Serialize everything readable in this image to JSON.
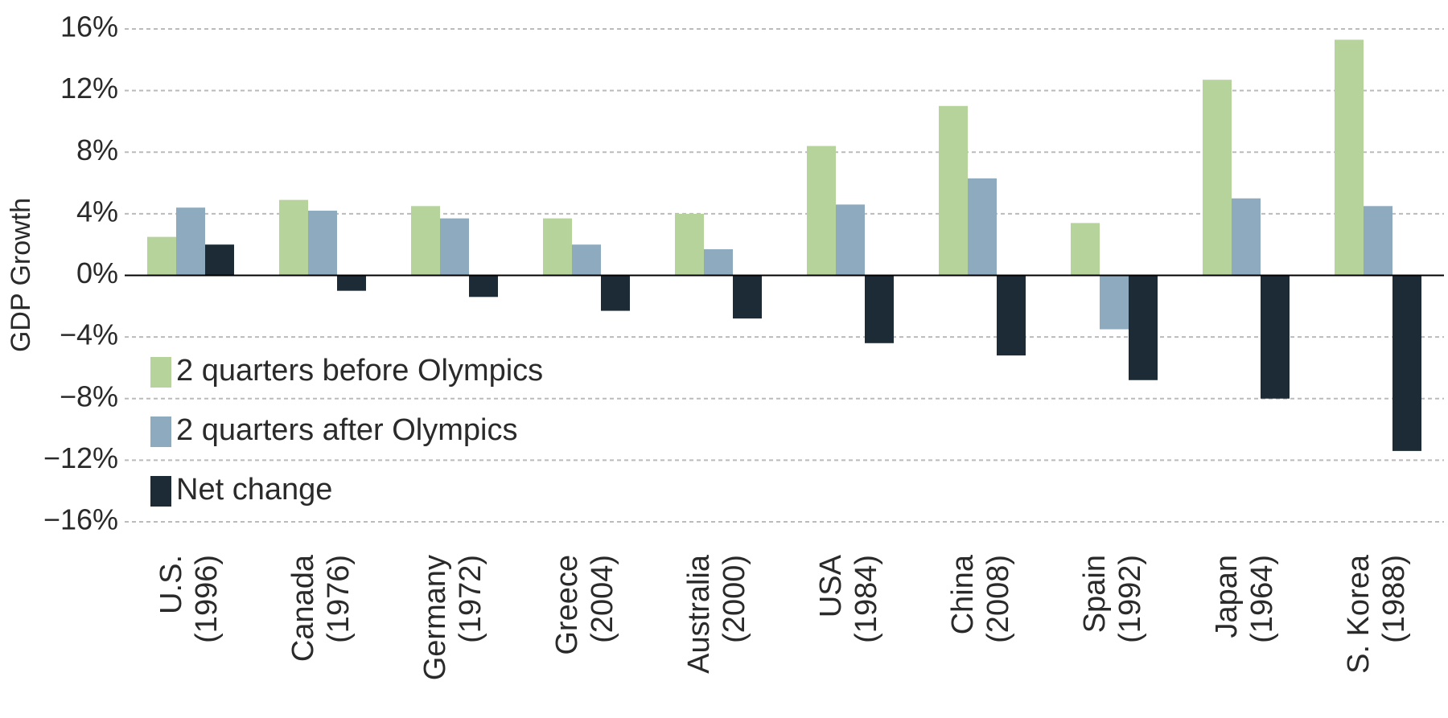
{
  "chart_data": {
    "type": "bar",
    "y_label": "GDP Growth",
    "categories": [
      "U.S. (1996)",
      "Canada (1976)",
      "Germany (1972)",
      "Greece (2004)",
      "Australia (2000)",
      "USA (1984)",
      "China (2008)",
      "Spain (1992)",
      "Japan (1964)",
      "S. Korea (1988)"
    ],
    "series": [
      {
        "name": "2 quarters before Olympics",
        "color": "#b5d39b",
        "values": [
          2.5,
          4.9,
          4.5,
          3.7,
          4.0,
          8.4,
          11.0,
          3.4,
          12.7,
          15.3
        ]
      },
      {
        "name": "2 quarters after Olympics",
        "color": "#8eaabf",
        "values": [
          4.4,
          4.2,
          3.7,
          2.0,
          1.7,
          4.6,
          6.3,
          -3.5,
          5.0,
          4.5
        ]
      },
      {
        "name": "Net change",
        "color": "#1c2b35",
        "values": [
          2.0,
          -1.0,
          -1.4,
          -2.3,
          -2.8,
          -4.4,
          -5.2,
          -6.8,
          -8.0,
          -11.4
        ]
      }
    ],
    "ylim": [
      -16,
      16
    ],
    "yticks": [
      {
        "value": -16,
        "label": "−16%"
      },
      {
        "value": -12,
        "label": "−12%"
      },
      {
        "value": -8,
        "label": "−8%"
      },
      {
        "value": -4,
        "label": "−4%"
      },
      {
        "value": 0,
        "label": "0%"
      },
      {
        "value": 4,
        "label": "4%"
      },
      {
        "value": 8,
        "label": "8%"
      },
      {
        "value": 12,
        "label": "12%"
      },
      {
        "value": 16,
        "label": "16%"
      }
    ],
    "grid": true,
    "legend": "left"
  }
}
